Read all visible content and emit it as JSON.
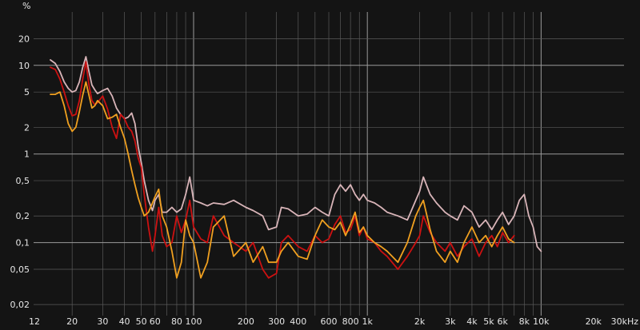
{
  "chart_data": {
    "type": "line",
    "ylabel": "%",
    "x_scale": "log",
    "y_scale": "log",
    "xlim": [
      12,
      30000
    ],
    "ylim": [
      0.015,
      40
    ],
    "background": "#141414",
    "grid_color": "#5a5a5a",
    "grid": true,
    "x_ticks": [
      {
        "v": 12,
        "label": "12"
      },
      {
        "v": 20,
        "label": "20"
      },
      {
        "v": 30,
        "label": "30"
      },
      {
        "v": 40,
        "label": "40"
      },
      {
        "v": 50,
        "label": "50"
      },
      {
        "v": 60,
        "label": "60"
      },
      {
        "v": 80,
        "label": "80"
      },
      {
        "v": 100,
        "label": "100"
      },
      {
        "v": 200,
        "label": "200"
      },
      {
        "v": 300,
        "label": "300"
      },
      {
        "v": 400,
        "label": "400"
      },
      {
        "v": 600,
        "label": "600"
      },
      {
        "v": 800,
        "label": "800"
      },
      {
        "v": 1000,
        "label": "1k"
      },
      {
        "v": 2000,
        "label": "2k"
      },
      {
        "v": 3000,
        "label": "3k"
      },
      {
        "v": 4000,
        "label": "4k"
      },
      {
        "v": 5000,
        "label": "5k"
      },
      {
        "v": 6000,
        "label": "6k"
      },
      {
        "v": 8000,
        "label": "8k"
      },
      {
        "v": 10000,
        "label": "10k"
      },
      {
        "v": 20000,
        "label": "20k"
      },
      {
        "v": 30000,
        "label": "30kHz"
      }
    ],
    "y_ticks": [
      {
        "v": 20,
        "label": "20"
      },
      {
        "v": 10,
        "label": "10"
      },
      {
        "v": 5,
        "label": "5"
      },
      {
        "v": 2,
        "label": "2"
      },
      {
        "v": 1,
        "label": "1"
      },
      {
        "v": 0.5,
        "label": "0,5"
      },
      {
        "v": 0.2,
        "label": "0,2"
      },
      {
        "v": 0.1,
        "label": "0,1"
      },
      {
        "v": 0.05,
        "label": "0,05"
      },
      {
        "v": 0.02,
        "label": "0,02"
      }
    ],
    "series": [
      {
        "color": "#d8b4b8",
        "x": [
          15,
          16,
          17,
          18,
          19,
          20,
          21,
          22,
          23,
          24,
          25,
          26,
          27,
          28,
          30,
          32,
          34,
          36,
          38,
          40,
          42,
          44,
          46,
          48,
          50,
          52,
          55,
          58,
          60,
          63,
          66,
          70,
          75,
          80,
          85,
          90,
          95,
          100,
          110,
          120,
          130,
          150,
          170,
          200,
          220,
          250,
          270,
          300,
          320,
          350,
          400,
          450,
          500,
          550,
          600,
          650,
          700,
          750,
          800,
          850,
          900,
          950,
          1000,
          1100,
          1200,
          1300,
          1500,
          1700,
          1900,
          2000,
          2100,
          2300,
          2500,
          2800,
          3000,
          3300,
          3600,
          4000,
          4400,
          4800,
          5200,
          5600,
          6000,
          6500,
          7000,
          7500,
          8000,
          8500,
          9000,
          9500,
          10000
        ],
        "values": [
          11.5,
          10.5,
          8.5,
          6.5,
          5.5,
          5.0,
          5.2,
          6.5,
          9.5,
          12.5,
          8.5,
          6.0,
          5.3,
          4.8,
          5.2,
          5.5,
          4.5,
          3.3,
          2.8,
          2.5,
          2.6,
          2.9,
          2.2,
          1.2,
          0.8,
          0.5,
          0.3,
          0.23,
          0.3,
          0.35,
          0.22,
          0.22,
          0.25,
          0.22,
          0.24,
          0.35,
          0.55,
          0.3,
          0.28,
          0.26,
          0.28,
          0.27,
          0.3,
          0.25,
          0.23,
          0.2,
          0.14,
          0.15,
          0.25,
          0.24,
          0.2,
          0.21,
          0.25,
          0.22,
          0.2,
          0.35,
          0.45,
          0.38,
          0.45,
          0.35,
          0.3,
          0.35,
          0.3,
          0.28,
          0.25,
          0.22,
          0.2,
          0.18,
          0.3,
          0.38,
          0.55,
          0.35,
          0.28,
          0.22,
          0.2,
          0.18,
          0.26,
          0.22,
          0.15,
          0.18,
          0.14,
          0.18,
          0.22,
          0.16,
          0.2,
          0.3,
          0.35,
          0.2,
          0.15,
          0.09,
          0.08
        ]
      },
      {
        "color": "#cc1111",
        "x": [
          15,
          16,
          17,
          18,
          19,
          20,
          21,
          22,
          23,
          24,
          25,
          26,
          27,
          28,
          30,
          32,
          34,
          36,
          38,
          40,
          42,
          44,
          46,
          48,
          50,
          52,
          55,
          58,
          60,
          63,
          66,
          70,
          75,
          80,
          85,
          90,
          95,
          100,
          110,
          120,
          130,
          150,
          170,
          200,
          220,
          250,
          270,
          300,
          320,
          350,
          400,
          450,
          500,
          550,
          600,
          650,
          700,
          750,
          800,
          850,
          900,
          950,
          1000,
          1100,
          1200,
          1300,
          1500,
          1700,
          1900,
          2000,
          2100,
          2300,
          2500,
          2800,
          3000,
          3300,
          3600,
          4000,
          4400,
          4800,
          5200,
          5600,
          6000,
          6500,
          7000
        ],
        "values": [
          9.5,
          9.0,
          7.0,
          5.0,
          3.5,
          2.7,
          2.8,
          4.0,
          7.0,
          11.0,
          6.0,
          4.0,
          3.6,
          3.8,
          4.5,
          3.2,
          2.0,
          1.5,
          2.8,
          2.5,
          2.0,
          1.8,
          1.4,
          0.9,
          0.7,
          0.35,
          0.15,
          0.08,
          0.12,
          0.25,
          0.12,
          0.09,
          0.1,
          0.2,
          0.13,
          0.18,
          0.3,
          0.15,
          0.11,
          0.1,
          0.2,
          0.12,
          0.1,
          0.08,
          0.1,
          0.05,
          0.04,
          0.045,
          0.1,
          0.12,
          0.09,
          0.08,
          0.12,
          0.1,
          0.11,
          0.16,
          0.2,
          0.13,
          0.14,
          0.2,
          0.12,
          0.15,
          0.11,
          0.1,
          0.08,
          0.07,
          0.05,
          0.07,
          0.1,
          0.12,
          0.2,
          0.13,
          0.1,
          0.08,
          0.1,
          0.07,
          0.09,
          0.11,
          0.07,
          0.1,
          0.12,
          0.09,
          0.13,
          0.1,
          0.12
        ]
      },
      {
        "color": "#f0a020",
        "x": [
          15,
          16,
          17,
          18,
          19,
          20,
          21,
          22,
          23,
          24,
          25,
          26,
          27,
          28,
          30,
          32,
          34,
          36,
          38,
          40,
          42,
          44,
          46,
          48,
          50,
          52,
          55,
          58,
          60,
          63,
          66,
          70,
          75,
          80,
          85,
          90,
          95,
          100,
          110,
          120,
          130,
          150,
          170,
          200,
          220,
          250,
          270,
          300,
          320,
          350,
          400,
          450,
          500,
          550,
          600,
          650,
          700,
          750,
          800,
          850,
          900,
          950,
          1000,
          1100,
          1200,
          1300,
          1500,
          1700,
          1900,
          2000,
          2100,
          2300,
          2500,
          2800,
          3000,
          3300,
          3600,
          4000,
          4400,
          4800,
          5200,
          5600,
          6000,
          6500,
          7000
        ],
        "values": [
          4.7,
          4.7,
          5.0,
          3.5,
          2.2,
          1.8,
          2.0,
          3.0,
          4.6,
          6.5,
          4.6,
          3.3,
          3.5,
          4.0,
          3.5,
          2.5,
          2.6,
          2.8,
          2.0,
          1.5,
          1.0,
          0.65,
          0.45,
          0.32,
          0.25,
          0.2,
          0.22,
          0.28,
          0.33,
          0.4,
          0.2,
          0.15,
          0.08,
          0.04,
          0.06,
          0.18,
          0.12,
          0.1,
          0.04,
          0.06,
          0.15,
          0.2,
          0.07,
          0.1,
          0.06,
          0.09,
          0.06,
          0.06,
          0.08,
          0.1,
          0.07,
          0.065,
          0.12,
          0.18,
          0.15,
          0.14,
          0.17,
          0.12,
          0.16,
          0.22,
          0.13,
          0.15,
          0.12,
          0.1,
          0.09,
          0.08,
          0.06,
          0.1,
          0.2,
          0.25,
          0.3,
          0.14,
          0.08,
          0.06,
          0.08,
          0.06,
          0.1,
          0.15,
          0.1,
          0.12,
          0.09,
          0.12,
          0.15,
          0.11,
          0.1
        ]
      }
    ]
  }
}
